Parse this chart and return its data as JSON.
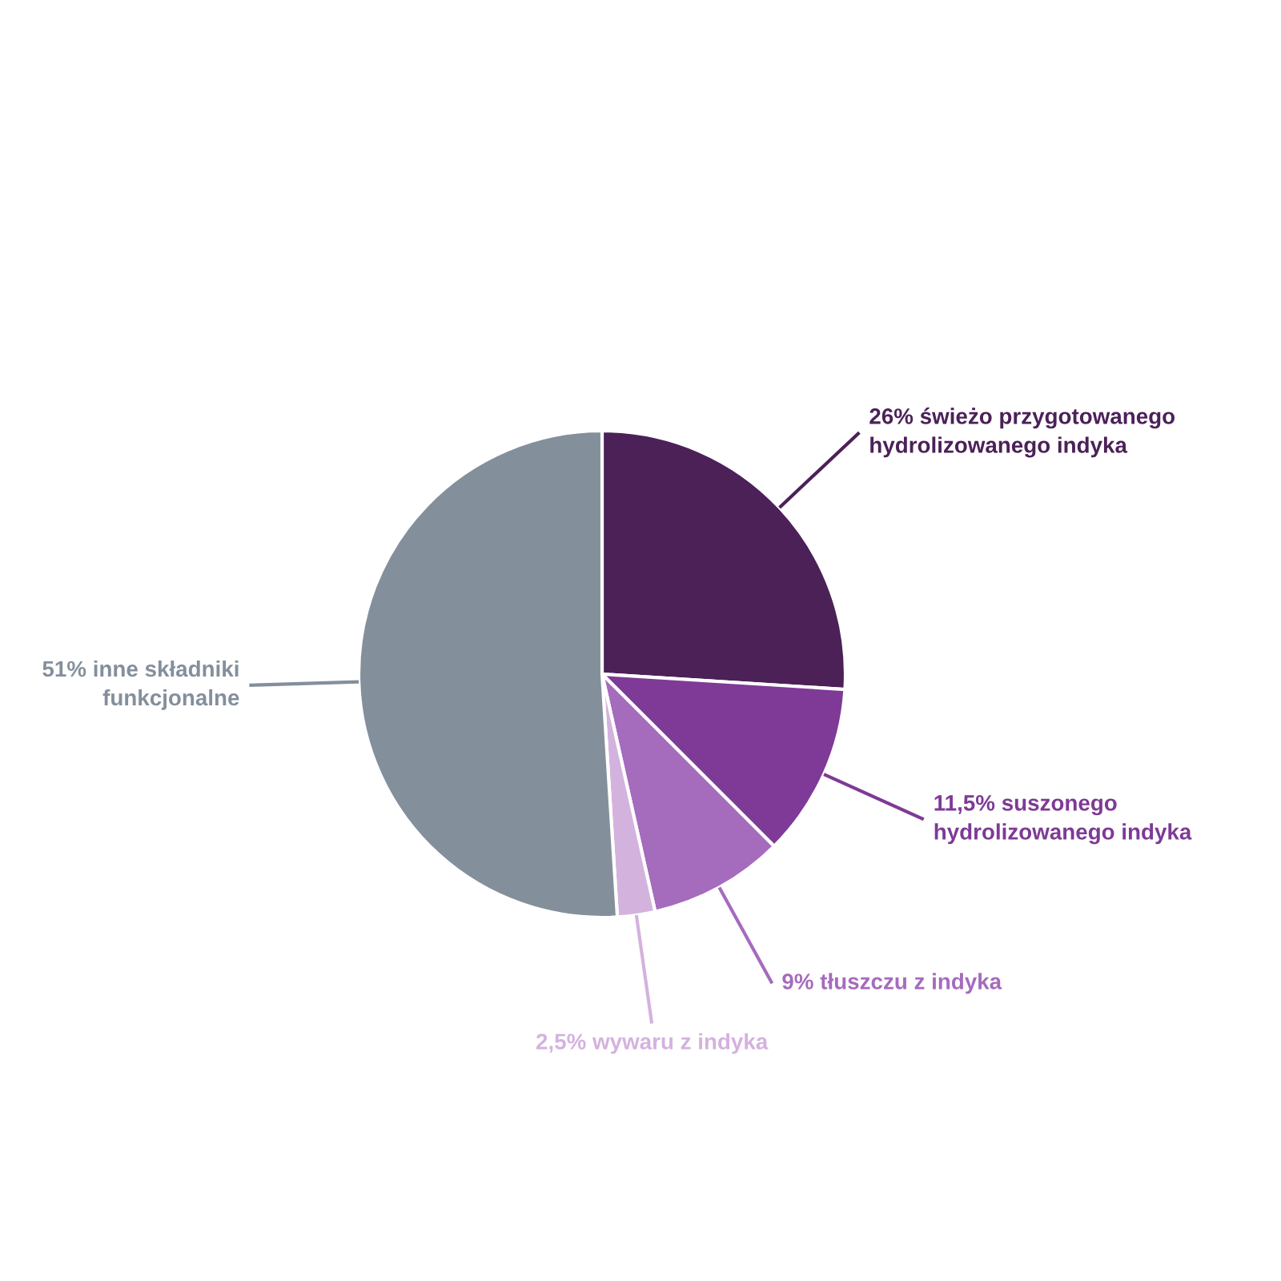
{
  "chart_data": {
    "type": "pie",
    "categories": [
      "świeżo przygotowanego\nhydrolizowanego indyka",
      "suszonego\nhydrolizowanego indyka",
      "tłuszczu z indyka",
      "wywaru z indyka",
      "inne składniki\nfunkcjonalne"
    ],
    "values": [
      26,
      11.5,
      9,
      2.5,
      51
    ],
    "value_labels": [
      "26%",
      "11,5%",
      "9%",
      "2,5%",
      "51%"
    ],
    "colors": [
      "#4b2158",
      "#7e3a96",
      "#a56bbd",
      "#d4b2de",
      "#848f9c"
    ]
  }
}
